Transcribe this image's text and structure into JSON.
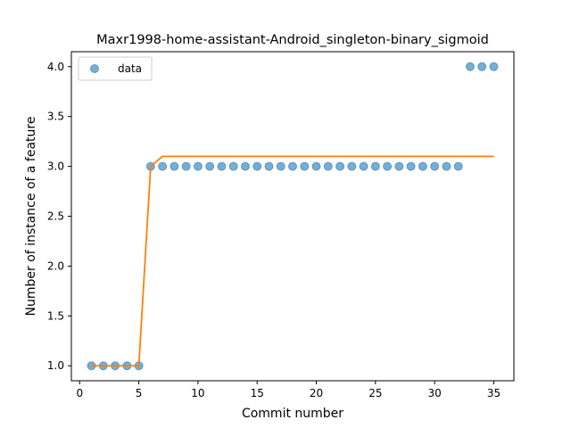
{
  "chart_data": {
    "type": "scatter",
    "title": "Maxr1998-home-assistant-Android_singleton-binary_sigmoid",
    "xlabel": "Commit number",
    "ylabel": "Number of instance of a feature",
    "xlim": [
      -0.7,
      36.7
    ],
    "ylim": [
      0.85,
      4.15
    ],
    "xticks": [
      0,
      5,
      10,
      15,
      20,
      25,
      30,
      35
    ],
    "yticks": [
      1.0,
      1.5,
      2.0,
      2.5,
      3.0,
      3.5,
      4.0
    ],
    "xtick_labels": [
      "0",
      "5",
      "10",
      "15",
      "20",
      "25",
      "30",
      "35"
    ],
    "ytick_labels": [
      "1.0",
      "1.5",
      "2.0",
      "2.5",
      "3.0",
      "3.5",
      "4.0"
    ],
    "grid": false,
    "legend_position": "top-left",
    "series": [
      {
        "name": "data",
        "kind": "scatter",
        "color": "#1f77b4",
        "x": [
          1,
          2,
          3,
          4,
          5,
          6,
          7,
          8,
          9,
          10,
          11,
          12,
          13,
          14,
          15,
          16,
          17,
          18,
          19,
          20,
          21,
          22,
          23,
          24,
          25,
          26,
          27,
          28,
          29,
          30,
          31,
          32,
          33,
          34,
          35
        ],
        "y": [
          1,
          1,
          1,
          1,
          1,
          3,
          3,
          3,
          3,
          3,
          3,
          3,
          3,
          3,
          3,
          3,
          3,
          3,
          3,
          3,
          3,
          3,
          3,
          3,
          3,
          3,
          3,
          3,
          3,
          3,
          3,
          3,
          4,
          4,
          4
        ]
      },
      {
        "kind": "line",
        "color": "#ff7f0e",
        "x": [
          1,
          2,
          3,
          4,
          5,
          6,
          7,
          8,
          9,
          10,
          11,
          12,
          13,
          14,
          15,
          16,
          17,
          18,
          19,
          20,
          21,
          22,
          23,
          24,
          25,
          26,
          27,
          28,
          29,
          30,
          31,
          32,
          33,
          34,
          35
        ],
        "y": [
          1,
          1,
          1,
          1,
          1,
          3.0,
          3.1,
          3.1,
          3.1,
          3.1,
          3.1,
          3.1,
          3.1,
          3.1,
          3.1,
          3.1,
          3.1,
          3.1,
          3.1,
          3.1,
          3.1,
          3.1,
          3.1,
          3.1,
          3.1,
          3.1,
          3.1,
          3.1,
          3.1,
          3.1,
          3.1,
          3.1,
          3.1,
          3.1,
          3.1
        ]
      }
    ]
  }
}
